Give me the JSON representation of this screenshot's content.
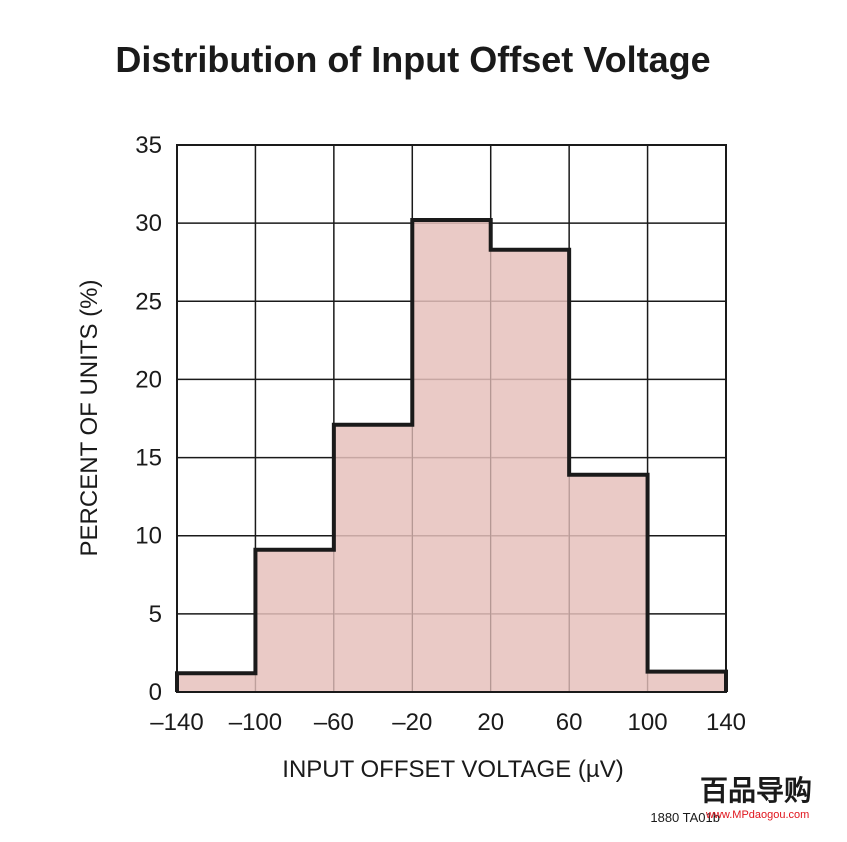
{
  "chart_data": {
    "type": "bar",
    "title": "Distribution of Input Offset Voltage",
    "xlabel": "INPUT OFFSET VOLTAGE (µV)",
    "ylabel": "PERCENT OF UNITS (%)",
    "bin_edges": [
      -140,
      -100,
      -60,
      -20,
      20,
      60,
      100,
      140
    ],
    "values": [
      1.2,
      9.1,
      17.1,
      30.2,
      28.3,
      13.9,
      1.3
    ],
    "xlim": [
      -140,
      140
    ],
    "ylim": [
      0,
      35
    ],
    "x_ticks": [
      -140,
      -100,
      -60,
      -20,
      20,
      60,
      100,
      140
    ],
    "x_tick_labels": [
      "–140",
      "–100",
      "–60",
      "–20",
      "20",
      "60",
      "100",
      "140"
    ],
    "y_ticks": [
      0,
      5,
      10,
      15,
      20,
      25,
      30,
      35
    ],
    "y_tick_labels": [
      "0",
      "5",
      "10",
      "15",
      "20",
      "25",
      "30",
      "35"
    ],
    "grid": true,
    "bar_fill_color": "#e6c1bc",
    "bar_outline_color": "#1a1a1a"
  },
  "footnote": "1880 TA01b",
  "watermark": {
    "text": "百品导购",
    "url": "www.MPdaogou.com",
    "accent_color": "#e0141c"
  }
}
